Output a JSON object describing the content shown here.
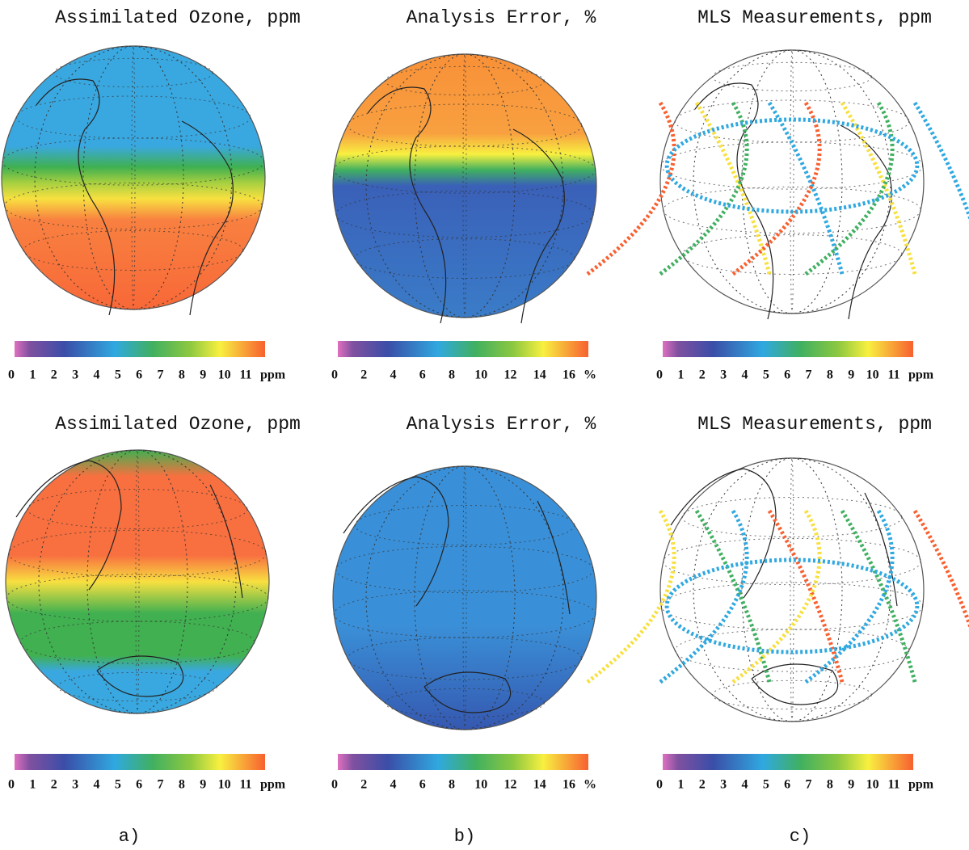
{
  "rows": [
    {
      "panels": [
        {
          "title": "Assimilated Ozone, ppm",
          "ticks": [
            0,
            1,
            2,
            3,
            4,
            5,
            6,
            7,
            8,
            9,
            10,
            11
          ],
          "unit": "ppm"
        },
        {
          "title": "Analysis Error, %",
          "ticks": [
            0,
            2,
            4,
            6,
            8,
            10,
            12,
            14,
            16
          ],
          "unit": "%"
        },
        {
          "title": "MLS Measurements, ppm",
          "ticks": [
            0,
            1,
            2,
            3,
            4,
            5,
            6,
            7,
            8,
            9,
            10,
            11
          ],
          "unit": "ppm"
        }
      ]
    },
    {
      "panels": [
        {
          "title": "Assimilated Ozone, ppm",
          "ticks": [
            0,
            1,
            2,
            3,
            4,
            5,
            6,
            7,
            8,
            9,
            10,
            11
          ],
          "unit": "ppm"
        },
        {
          "title": "Analysis Error, %",
          "ticks": [
            0,
            2,
            4,
            6,
            8,
            10,
            12,
            14,
            16
          ],
          "unit": "%"
        },
        {
          "title": "MLS Measurements, ppm",
          "ticks": [
            0,
            1,
            2,
            3,
            4,
            5,
            6,
            7,
            8,
            9,
            10,
            11
          ],
          "unit": "ppm"
        }
      ]
    }
  ],
  "panel_labels": [
    "a)",
    "b)",
    "c)"
  ]
}
